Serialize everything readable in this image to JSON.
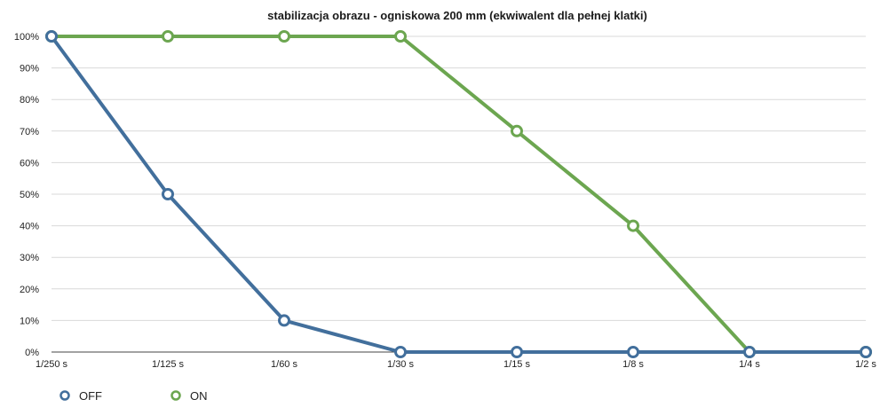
{
  "chart_data": {
    "type": "line",
    "title": "stabilizacja obrazu - ogniskowa 200 mm (ekwiwalent dla pełnej klatki)",
    "xlabel": "",
    "ylabel": "",
    "categories": [
      "1/250 s",
      "1/125 s",
      "1/60 s",
      "1/30 s",
      "1/15 s",
      "1/8 s",
      "1/4 s",
      "1/2 s"
    ],
    "yticks": [
      "0%",
      "10%",
      "20%",
      "30%",
      "40%",
      "50%",
      "60%",
      "70%",
      "80%",
      "90%",
      "100%"
    ],
    "ylim": [
      0,
      100
    ],
    "grid": true,
    "legend": "bottom-left",
    "series": [
      {
        "name": "OFF",
        "color": "#426f9c",
        "values": [
          100,
          50,
          10,
          0,
          0,
          0,
          0,
          0
        ]
      },
      {
        "name": "ON",
        "color": "#6ca650",
        "values": [
          100,
          100,
          100,
          100,
          70,
          40,
          0,
          0
        ]
      }
    ]
  }
}
